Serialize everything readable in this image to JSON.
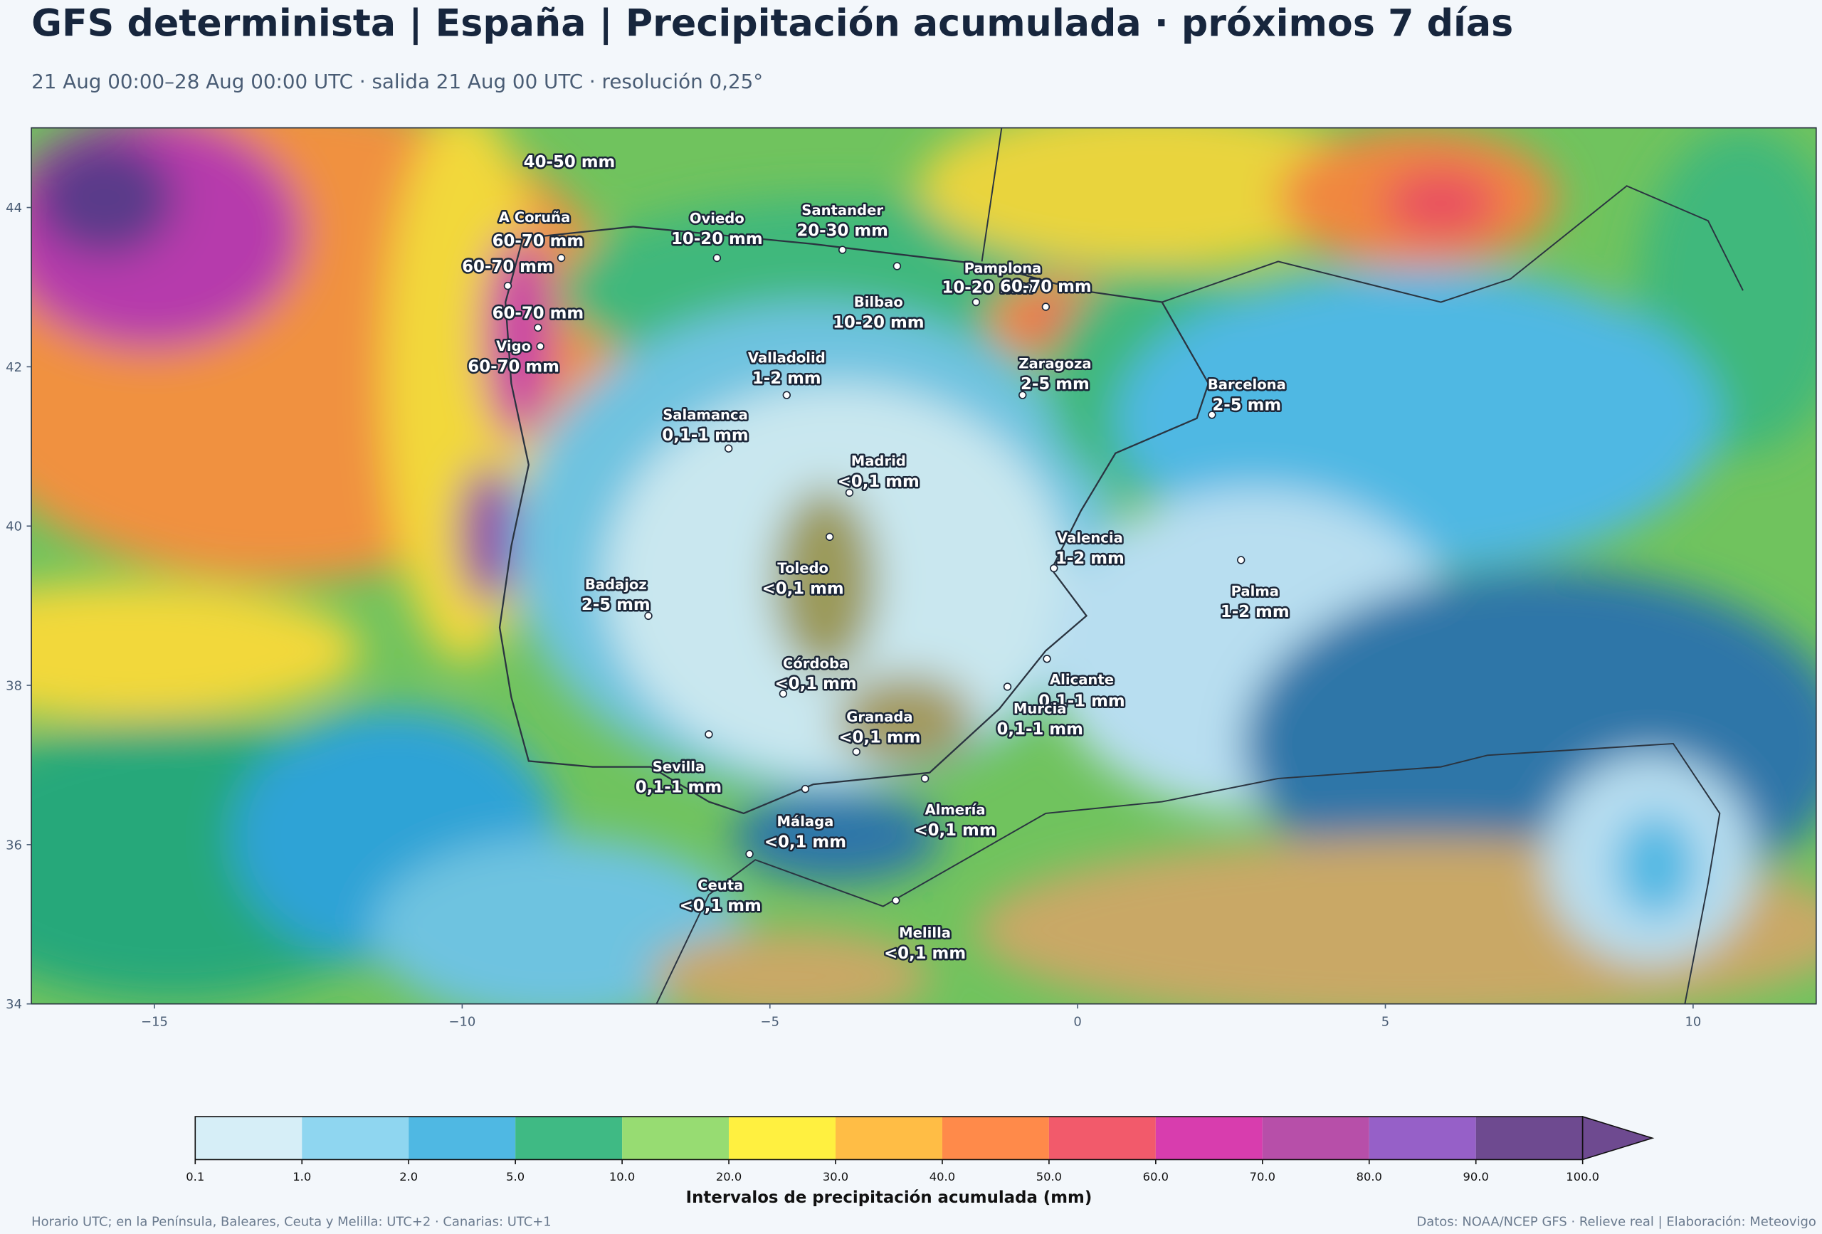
{
  "header": {
    "title": "GFS determinista | España | Precipitación acumulada · próximos 7 días",
    "subtitle": "21 Aug 00:00–28 Aug 00:00 UTC · salida 21 Aug 00 UTC · resolución 0,25°"
  },
  "map": {
    "xlim": [
      -17,
      12
    ],
    "ylim": [
      34,
      45
    ],
    "xticks": [
      {
        "value": -15,
        "label": "−15"
      },
      {
        "value": -10,
        "label": "−10"
      },
      {
        "value": -5,
        "label": "−5"
      },
      0,
      5,
      10
    ],
    "yticks": [
      34,
      36,
      38,
      40,
      42,
      44
    ],
    "labels": [
      {
        "value": "40-50 mm"
      },
      {
        "name": "A Coruña",
        "value": "60-70 mm"
      },
      {
        "value": "60-70 mm"
      },
      {
        "value": "60-70 mm"
      },
      {
        "name": "Vigo",
        "value": "60-70 mm"
      },
      {
        "name": "Oviedo",
        "value": "10-20 mm"
      },
      {
        "name": "Santander",
        "value": "20-30 mm"
      },
      {
        "name": "Pamplona",
        "value": "10-20 mm"
      },
      {
        "value": "60-70 mm"
      },
      {
        "name": "Bilbao",
        "value": "10-20 mm"
      },
      {
        "name": "Valladolid",
        "value": "1-2 mm"
      },
      {
        "name": "Zaragoza",
        "value": "2-5 mm"
      },
      {
        "name": "Barcelona",
        "value": "2-5 mm"
      },
      {
        "name": "Salamanca",
        "value": "0,1-1 mm"
      },
      {
        "name": "Madrid",
        "value": "<0,1 mm"
      },
      {
        "name": "Valencia",
        "value": "1-2 mm"
      },
      {
        "name": "Badajoz",
        "value": "2-5 mm"
      },
      {
        "name": "Toledo",
        "value": "<0,1 mm"
      },
      {
        "name": "Palma",
        "value": "1-2 mm"
      },
      {
        "name": "Córdoba",
        "value": "<0,1 mm"
      },
      {
        "name": "Alicante",
        "value": "0,1-1 mm"
      },
      {
        "name": "Murcia",
        "value": "0,1-1 mm"
      },
      {
        "name": "Granada",
        "value": "<0,1 mm"
      },
      {
        "name": "Sevilla",
        "value": "0,1-1 mm"
      },
      {
        "name": "Almería",
        "value": "<0,1 mm"
      },
      {
        "name": "Málaga",
        "value": "<0,1 mm"
      },
      {
        "name": "Ceuta",
        "value": "<0,1 mm"
      },
      {
        "name": "Melilla",
        "value": "<0,1 mm"
      }
    ]
  },
  "colorbar": {
    "label": "Intervalos de precipitación acumulada (mm)",
    "boundaries": [
      0.1,
      {
        "value": 1,
        "label": "1.0"
      },
      {
        "value": 2,
        "label": "2.0"
      },
      {
        "value": 5,
        "label": "5.0"
      },
      {
        "value": 10,
        "label": "10.0"
      },
      {
        "value": 20,
        "label": "20.0"
      },
      {
        "value": 30,
        "label": "30.0"
      },
      {
        "value": 40,
        "label": "40.0"
      },
      {
        "value": 50,
        "label": "50.0"
      },
      {
        "value": 60,
        "label": "60.0"
      },
      {
        "value": 70,
        "label": "70.0"
      },
      {
        "value": 80,
        "label": "80.0"
      },
      {
        "value": 90,
        "label": "90.0"
      },
      {
        "value": 100,
        "label": "100.0"
      }
    ],
    "colors": [
      "#d6eef7",
      "#8fd6f0",
      "#4fb8e3",
      "#3fba84",
      "#97dc72",
      "#fff040",
      "#ffbd45",
      "#ff8a4a",
      "#f25a6b",
      "#d83dae",
      "#b74fa9",
      "#9660c8",
      "#6e4a90"
    ],
    "extend_color": "#6e4a90"
  },
  "footer": {
    "left": "Horario UTC; en la Península, Baleares, Ceuta y Melilla: UTC+2 · Canarias: UTC+1",
    "right": "Datos: NOAA/NCEP GFS · Relieve real | Elaboración: Meteovigo"
  }
}
